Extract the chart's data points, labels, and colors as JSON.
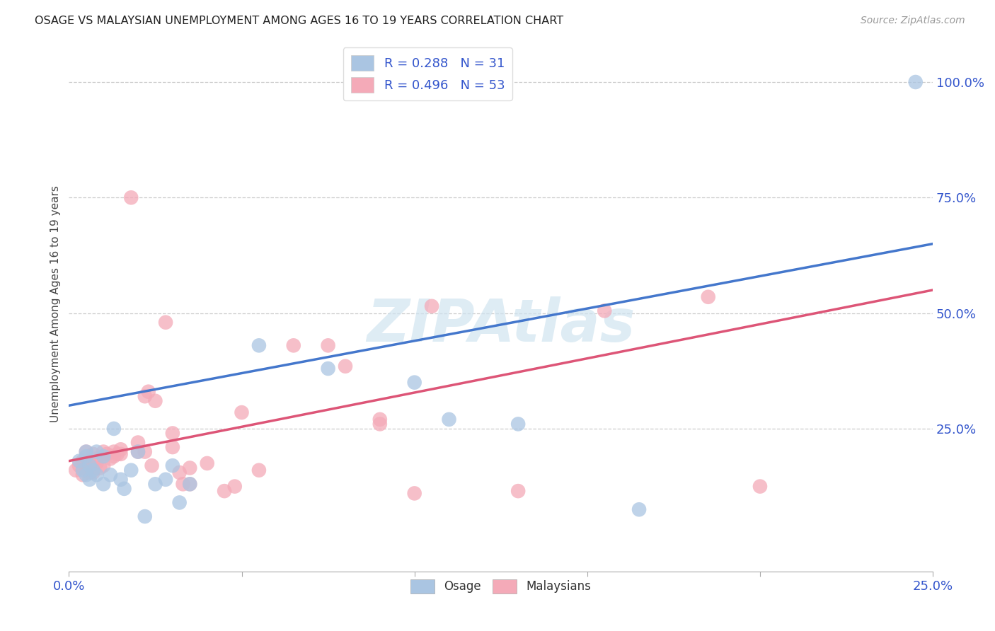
{
  "title": "OSAGE VS MALAYSIAN UNEMPLOYMENT AMONG AGES 16 TO 19 YEARS CORRELATION CHART",
  "source": "Source: ZipAtlas.com",
  "ylabel": "Unemployment Among Ages 16 to 19 years",
  "xlim": [
    0.0,
    0.25
  ],
  "ylim": [
    -0.06,
    1.1
  ],
  "osage_R": "0.288",
  "osage_N": "31",
  "malaysian_R": "0.496",
  "malaysian_N": "53",
  "osage_color": "#aac5e2",
  "malaysian_color": "#f4aab8",
  "osage_line_color": "#4477cc",
  "malaysian_line_color": "#dd5577",
  "legend_text_color": "#3355cc",
  "watermark_color": "#d0e4f0",
  "osage_points": [
    [
      0.003,
      0.18
    ],
    [
      0.004,
      0.16
    ],
    [
      0.005,
      0.19
    ],
    [
      0.005,
      0.2
    ],
    [
      0.005,
      0.15
    ],
    [
      0.006,
      0.17
    ],
    [
      0.006,
      0.14
    ],
    [
      0.007,
      0.16
    ],
    [
      0.008,
      0.15
    ],
    [
      0.008,
      0.2
    ],
    [
      0.01,
      0.19
    ],
    [
      0.01,
      0.13
    ],
    [
      0.012,
      0.15
    ],
    [
      0.013,
      0.25
    ],
    [
      0.015,
      0.14
    ],
    [
      0.016,
      0.12
    ],
    [
      0.018,
      0.16
    ],
    [
      0.02,
      0.2
    ],
    [
      0.022,
      0.06
    ],
    [
      0.025,
      0.13
    ],
    [
      0.028,
      0.14
    ],
    [
      0.03,
      0.17
    ],
    [
      0.032,
      0.09
    ],
    [
      0.035,
      0.13
    ],
    [
      0.055,
      0.43
    ],
    [
      0.075,
      0.38
    ],
    [
      0.1,
      0.35
    ],
    [
      0.11,
      0.27
    ],
    [
      0.13,
      0.26
    ],
    [
      0.165,
      0.075
    ],
    [
      0.245,
      1.0
    ]
  ],
  "malaysian_points": [
    [
      0.002,
      0.16
    ],
    [
      0.003,
      0.17
    ],
    [
      0.004,
      0.15
    ],
    [
      0.004,
      0.18
    ],
    [
      0.005,
      0.2
    ],
    [
      0.005,
      0.165
    ],
    [
      0.006,
      0.155
    ],
    [
      0.006,
      0.175
    ],
    [
      0.007,
      0.155
    ],
    [
      0.007,
      0.195
    ],
    [
      0.008,
      0.175
    ],
    [
      0.008,
      0.185
    ],
    [
      0.009,
      0.165
    ],
    [
      0.01,
      0.2
    ],
    [
      0.01,
      0.17
    ],
    [
      0.011,
      0.195
    ],
    [
      0.012,
      0.185
    ],
    [
      0.013,
      0.19
    ],
    [
      0.013,
      0.2
    ],
    [
      0.014,
      0.195
    ],
    [
      0.015,
      0.205
    ],
    [
      0.015,
      0.195
    ],
    [
      0.018,
      0.75
    ],
    [
      0.02,
      0.2
    ],
    [
      0.02,
      0.22
    ],
    [
      0.022,
      0.2
    ],
    [
      0.022,
      0.32
    ],
    [
      0.023,
      0.33
    ],
    [
      0.024,
      0.17
    ],
    [
      0.025,
      0.31
    ],
    [
      0.028,
      0.48
    ],
    [
      0.03,
      0.21
    ],
    [
      0.03,
      0.24
    ],
    [
      0.032,
      0.155
    ],
    [
      0.033,
      0.13
    ],
    [
      0.035,
      0.165
    ],
    [
      0.035,
      0.13
    ],
    [
      0.04,
      0.175
    ],
    [
      0.045,
      0.115
    ],
    [
      0.048,
      0.125
    ],
    [
      0.05,
      0.285
    ],
    [
      0.055,
      0.16
    ],
    [
      0.065,
      0.43
    ],
    [
      0.075,
      0.43
    ],
    [
      0.08,
      0.385
    ],
    [
      0.09,
      0.27
    ],
    [
      0.09,
      0.26
    ],
    [
      0.1,
      0.11
    ],
    [
      0.105,
      0.515
    ],
    [
      0.13,
      0.115
    ],
    [
      0.155,
      0.505
    ],
    [
      0.185,
      0.535
    ],
    [
      0.2,
      0.125
    ]
  ]
}
